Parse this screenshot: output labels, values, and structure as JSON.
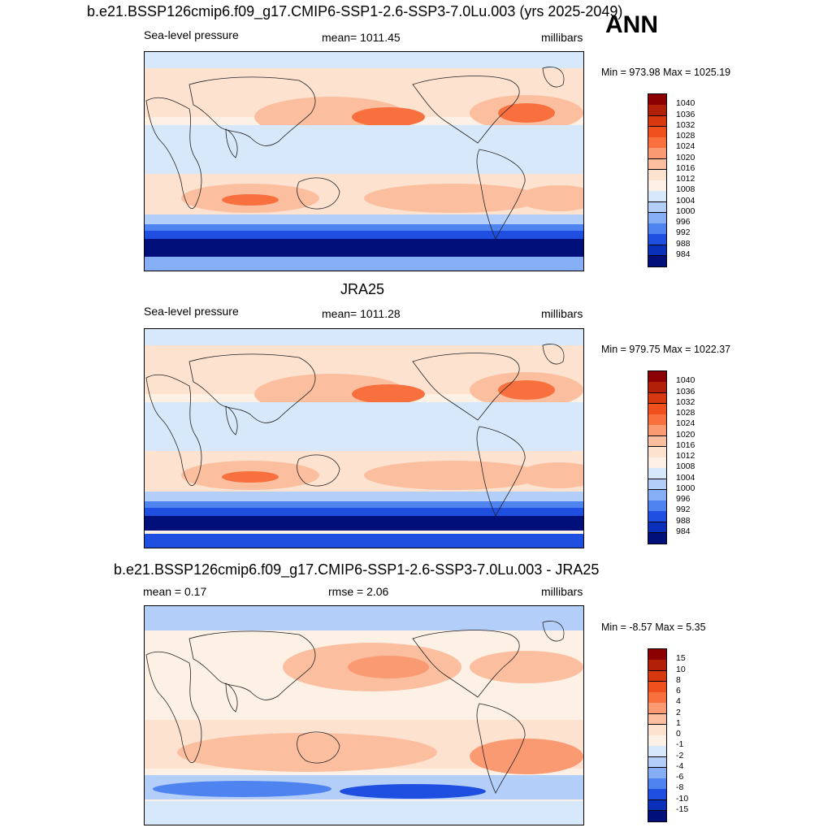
{
  "header": {
    "case_title": "b.e21.BSSP126cmip6.f09_g17.CMIP6-SSP1-2.6-SSP3-7.0Lu.003 (yrs 2025-2049)",
    "season": "ANN"
  },
  "panels": [
    {
      "id": "model",
      "title": "",
      "left_label": "Sea-level pressure",
      "center_label": "mean= 1011.45",
      "right_label": "millibars",
      "minmax": "Min = 973.98 Max = 1025.19"
    },
    {
      "id": "obs",
      "title": "JRA25",
      "left_label": "Sea-level pressure",
      "center_label": "mean= 1011.28",
      "right_label": "millibars",
      "minmax": "Min = 979.75 Max = 1022.37"
    },
    {
      "id": "diff",
      "title": "b.e21.BSSP126cmip6.f09_g17.CMIP6-SSP1-2.6-SSP3-7.0Lu.003 - JRA25",
      "left_label": "mean =   0.17",
      "center_label": "rmse =   2.06",
      "right_label": "millibars",
      "minmax": "Min =  -8.57 Max =   5.35"
    }
  ],
  "colorbars": {
    "abs": {
      "labels": [
        "1040",
        "1036",
        "1032",
        "1028",
        "1024",
        "1020",
        "1016",
        "1012",
        "1008",
        "1004",
        "1000",
        "996",
        "992",
        "988",
        "984"
      ],
      "colors": [
        "#8b0000",
        "#b3200a",
        "#d8380f",
        "#f0501e",
        "#f7703e",
        "#fa9a73",
        "#fbbfa0",
        "#fde2cf",
        "#fdf0e4",
        "#d7e8fb",
        "#b3cff9",
        "#86aef5",
        "#4f83f0",
        "#1f4fe0",
        "#0a2fb8",
        "#000f7a"
      ]
    },
    "diff": {
      "labels": [
        "15",
        "10",
        "8",
        "6",
        "4",
        "2",
        "1",
        "0",
        "-1",
        "-2",
        "-4",
        "-6",
        "-8",
        "-10",
        "-15"
      ],
      "colors": [
        "#8b0000",
        "#b3200a",
        "#d8380f",
        "#f0501e",
        "#f7703e",
        "#fa9a73",
        "#fbbfa0",
        "#fde2cf",
        "#fdf0e4",
        "#d7e8fb",
        "#b3cff9",
        "#86aef5",
        "#4f83f0",
        "#1f4fe0",
        "#0a2fb8",
        "#000f7a"
      ]
    }
  },
  "chart_data": [
    {
      "type": "heatmap",
      "title": "b.e21.BSSP126cmip6.f09_g17.CMIP6-SSP1-2.6-SSP3-7.0Lu.003 (yrs 2025-2049)",
      "variable": "Sea-level pressure",
      "units": "millibars",
      "mean": 1011.45,
      "min": 973.98,
      "max": 1025.19,
      "contour_levels": [
        984,
        988,
        992,
        996,
        1000,
        1004,
        1008,
        1012,
        1016,
        1020,
        1024,
        1028,
        1032,
        1036,
        1040
      ]
    },
    {
      "type": "heatmap",
      "title": "JRA25",
      "variable": "Sea-level pressure",
      "units": "millibars",
      "mean": 1011.28,
      "min": 979.75,
      "max": 1022.37,
      "contour_levels": [
        984,
        988,
        992,
        996,
        1000,
        1004,
        1008,
        1012,
        1016,
        1020,
        1024,
        1028,
        1032,
        1036,
        1040
      ]
    },
    {
      "type": "heatmap",
      "title": "b.e21.BSSP126cmip6.f09_g17.CMIP6-SSP1-2.6-SSP3-7.0Lu.003 - JRA25",
      "units": "millibars",
      "mean": 0.17,
      "rmse": 2.06,
      "min": -8.57,
      "max": 5.35,
      "contour_levels": [
        -15,
        -10,
        -8,
        -6,
        -4,
        -2,
        -1,
        0,
        1,
        2,
        4,
        6,
        8,
        10,
        15
      ]
    }
  ]
}
